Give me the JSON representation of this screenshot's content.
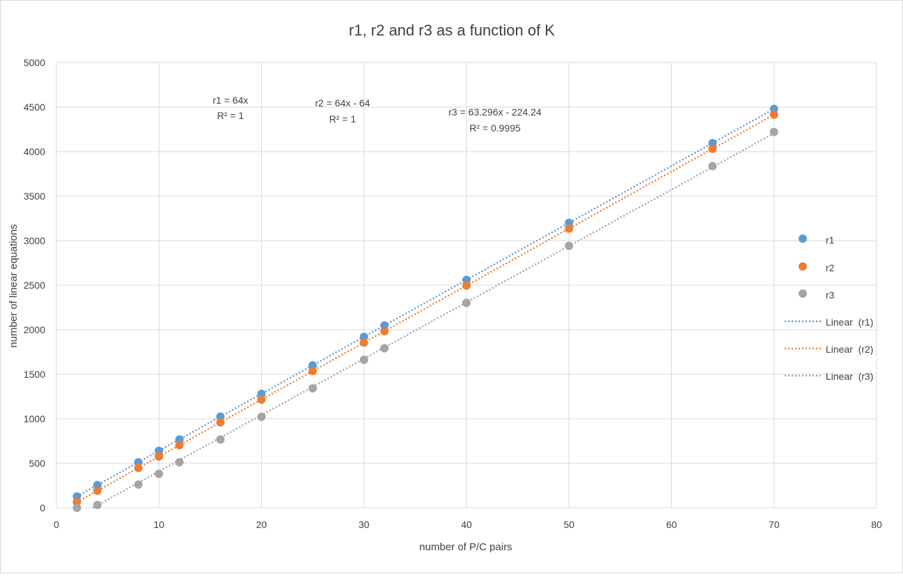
{
  "chart_data": {
    "type": "scatter",
    "title": "r1, r2 and r3 as a function of K",
    "xlabel": "number of P/C pairs",
    "ylabel": "number of linear equations",
    "xlim": [
      0,
      80
    ],
    "ylim": [
      0,
      5000
    ],
    "x_ticks": [
      0,
      10,
      20,
      30,
      40,
      50,
      60,
      70,
      80
    ],
    "y_ticks": [
      0,
      500,
      1000,
      1500,
      2000,
      2500,
      3000,
      3500,
      4000,
      4500,
      5000
    ],
    "grid": true,
    "legend_position": "right",
    "x": [
      2,
      4,
      8,
      10,
      12,
      16,
      20,
      25,
      30,
      32,
      40,
      50,
      64,
      70
    ],
    "series": [
      {
        "name": "r1",
        "color": "#5b9bd5",
        "values": [
          128,
          256,
          512,
          640,
          768,
          1024,
          1280,
          1600,
          1920,
          2048,
          2560,
          3200,
          4096,
          4480
        ]
      },
      {
        "name": "r2",
        "color": "#ed7d31",
        "values": [
          64,
          192,
          448,
          576,
          704,
          960,
          1216,
          1536,
          1856,
          1984,
          2496,
          3136,
          4032,
          4416
        ]
      },
      {
        "name": "r3",
        "color": "#a5a5a5",
        "values": [
          0,
          32,
          262,
          382,
          512,
          768,
          1022,
          1342,
          1662,
          1792,
          2302,
          2942,
          3838,
          4222
        ]
      }
    ],
    "trendlines": [
      {
        "name": "Linear  (r1)",
        "color": "#5b9bd5",
        "slope": 64,
        "intercept": 0,
        "x_range": [
          2,
          70
        ],
        "equation": "r1 = 64x",
        "r2_label": "R² = 1"
      },
      {
        "name": "Linear  (r2)",
        "color": "#ed7d31",
        "slope": 64,
        "intercept": -64,
        "x_range": [
          2,
          70
        ],
        "equation": "r2 = 64x - 64",
        "r2_label": "R² = 1"
      },
      {
        "name": "Linear  (r3)",
        "color": "#a5a5a5",
        "slope": 63.296,
        "intercept": -224.24,
        "x_range": [
          2,
          70
        ],
        "equation": "r3 = 63.296x - 224.24",
        "r2_label": "R² = 0.9995"
      }
    ]
  }
}
